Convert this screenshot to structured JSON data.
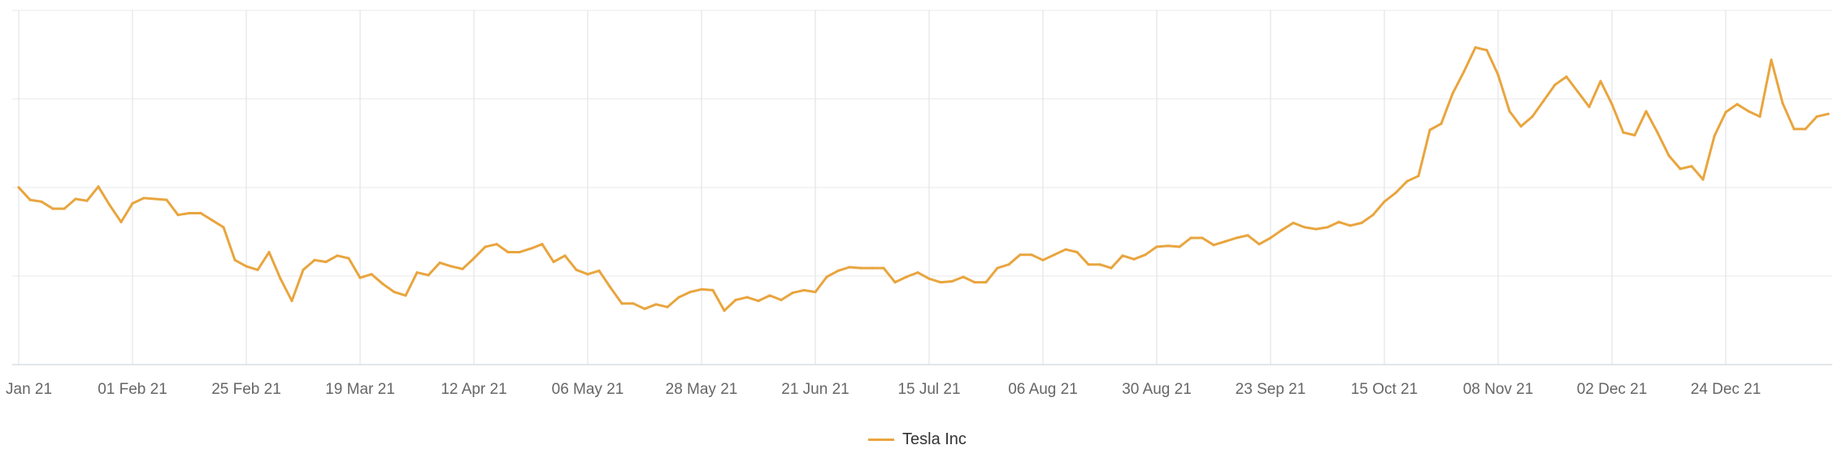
{
  "chart_data": {
    "type": "line",
    "title": "",
    "xlabel": "",
    "ylabel": "",
    "y_axis_labels_shown": false,
    "y_units_note": "no y-axis labels printed; values read relative to the 4 horizontal gridline intervals",
    "ylim": [
      0,
      4
    ],
    "grid": "on",
    "legend_position": "bottom-center",
    "x_tick_labels": [
      "Jan 21",
      "01 Feb 21",
      "25 Feb 21",
      "19 Mar 21",
      "12 Apr 21",
      "06 May 21",
      "28 May 21",
      "21 Jun 21",
      "15 Jul 21",
      "06 Aug 21",
      "30 Aug 21",
      "23 Sep 21",
      "15 Oct 21",
      "08 Nov 21",
      "02 Dec 21",
      "24 Dec 21"
    ],
    "series": [
      {
        "name": "Tesla Inc",
        "color": "#e9a53e",
        "values": [
          2.0,
          1.86,
          1.84,
          1.76,
          1.76,
          1.87,
          1.85,
          2.01,
          1.8,
          1.61,
          1.82,
          1.88,
          1.87,
          1.86,
          1.69,
          1.71,
          1.71,
          1.63,
          1.55,
          1.18,
          1.11,
          1.07,
          1.27,
          0.97,
          0.72,
          1.07,
          1.18,
          1.16,
          1.23,
          1.2,
          0.98,
          1.02,
          0.91,
          0.82,
          0.78,
          1.04,
          1.01,
          1.15,
          1.11,
          1.08,
          1.2,
          1.33,
          1.36,
          1.27,
          1.27,
          1.31,
          1.36,
          1.16,
          1.23,
          1.07,
          1.02,
          1.06,
          0.87,
          0.69,
          0.69,
          0.63,
          0.68,
          0.65,
          0.76,
          0.82,
          0.85,
          0.84,
          0.61,
          0.73,
          0.76,
          0.72,
          0.78,
          0.73,
          0.81,
          0.84,
          0.82,
          0.99,
          1.06,
          1.1,
          1.09,
          1.09,
          1.09,
          0.93,
          0.99,
          1.04,
          0.97,
          0.93,
          0.94,
          0.99,
          0.93,
          0.93,
          1.09,
          1.13,
          1.24,
          1.24,
          1.18,
          1.24,
          1.3,
          1.27,
          1.13,
          1.13,
          1.09,
          1.23,
          1.19,
          1.24,
          1.33,
          1.34,
          1.33,
          1.43,
          1.43,
          1.35,
          1.39,
          1.43,
          1.46,
          1.36,
          1.43,
          1.52,
          1.6,
          1.55,
          1.53,
          1.55,
          1.61,
          1.57,
          1.6,
          1.69,
          1.84,
          1.94,
          2.07,
          2.13,
          2.65,
          2.72,
          3.06,
          3.31,
          3.58,
          3.55,
          3.27,
          2.86,
          2.69,
          2.8,
          2.98,
          3.16,
          3.25,
          3.08,
          2.91,
          3.2,
          2.94,
          2.62,
          2.59,
          2.86,
          2.62,
          2.36,
          2.21,
          2.24,
          2.09,
          2.58,
          2.85,
          2.94,
          2.86,
          2.8,
          3.44,
          2.95,
          2.66,
          2.66,
          2.8,
          2.83
        ]
      }
    ]
  },
  "legend": {
    "label": "Tesla Inc"
  },
  "colors": {
    "series": "#e9a53e",
    "vgrid": "#e3e6ea",
    "hgrid": "#f0f0f0",
    "axis": "#d8dde3"
  }
}
